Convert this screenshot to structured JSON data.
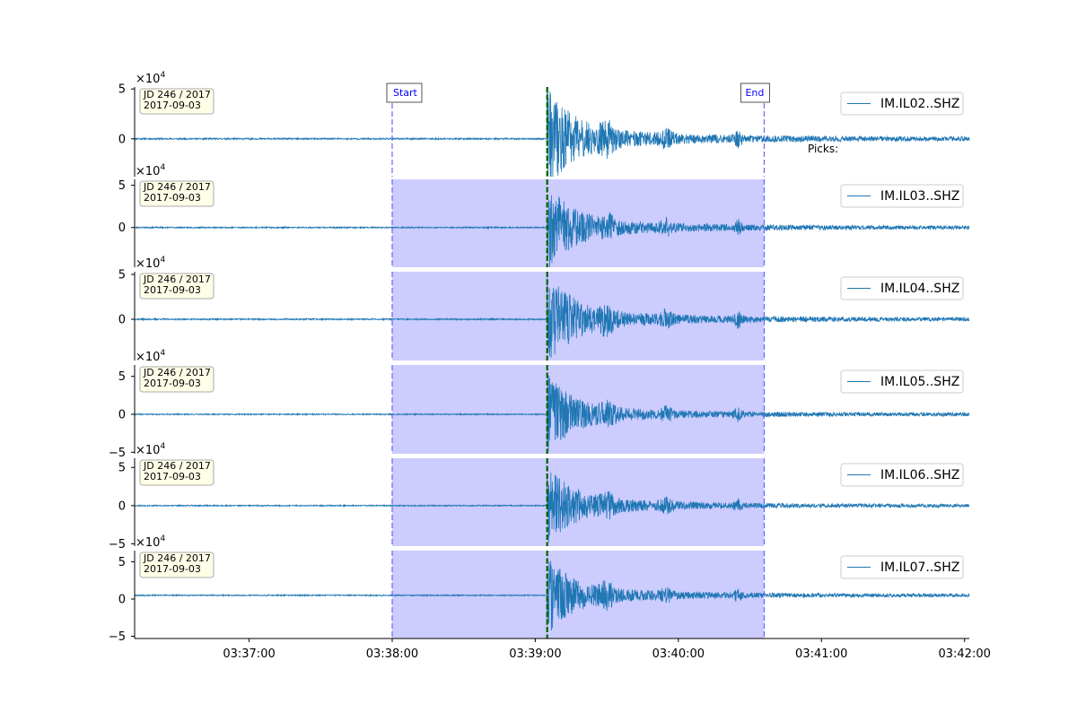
{
  "chart_data": {
    "type": "line",
    "panels": [
      {
        "station": "IM.IL02..SHZ",
        "yticks": [
          {
            "v": 5,
            "label": "5"
          },
          {
            "v": 0,
            "label": "0"
          }
        ],
        "ylim": [
          -3.8,
          5.2
        ],
        "baseline": 0.0,
        "amp": 1.0,
        "seed": 11,
        "shaded": false
      },
      {
        "station": "IM.IL03..SHZ",
        "yticks": [
          {
            "v": 5,
            "label": "5"
          },
          {
            "v": 0,
            "label": "0"
          }
        ],
        "ylim": [
          -4.7,
          5.7
        ],
        "baseline": 0.0,
        "amp": 1.0,
        "seed": 23,
        "shaded": true
      },
      {
        "station": "IM.IL04..SHZ",
        "yticks": [
          {
            "v": 5,
            "label": "5"
          },
          {
            "v": 0,
            "label": "0"
          }
        ],
        "ylim": [
          -4.6,
          5.3
        ],
        "baseline": 0.0,
        "amp": 1.0,
        "seed": 37,
        "shaded": true
      },
      {
        "station": "IM.IL05..SHZ",
        "yticks": [
          {
            "v": 5,
            "label": "5"
          },
          {
            "v": 0,
            "label": "0"
          },
          {
            "v": -5,
            "label": "−5"
          }
        ],
        "ylim": [
          -5.2,
          6.5
        ],
        "baseline": 0.0,
        "amp": 1.0,
        "seed": 41,
        "shaded": true
      },
      {
        "station": "IM.IL06..SHZ",
        "yticks": [
          {
            "v": 5,
            "label": "5"
          },
          {
            "v": 0,
            "label": "0"
          },
          {
            "v": -5,
            "label": "−5"
          }
        ],
        "ylim": [
          -5.3,
          6.2
        ],
        "baseline": 0.0,
        "amp": 1.0,
        "seed": 53,
        "shaded": true
      },
      {
        "station": "IM.IL07..SHZ",
        "yticks": [
          {
            "v": 5,
            "label": "5"
          },
          {
            "v": 0,
            "label": "0"
          },
          {
            "v": -5,
            "label": "−5"
          }
        ],
        "ylim": [
          -5.3,
          6.5
        ],
        "baseline": 0.5,
        "amp": 1.0,
        "seed": 67,
        "shaded": true
      }
    ],
    "scale_label": "×10",
    "scale_exponent": "4",
    "date_box": {
      "line1": "JD 246 / 2017",
      "line2": "2017-09-03"
    },
    "x_range": [
      "03:36:12",
      "03:42:02"
    ],
    "xticks": [
      "03:37:00",
      "03:38:00",
      "03:39:00",
      "03:40:00",
      "03:41:00",
      "03:42:00"
    ],
    "event_onset": "03:39:05",
    "window_start": "03:38:00",
    "window_end": "03:40:36",
    "start_label": "Start",
    "end_label": "End",
    "picks_label": "Picks:",
    "grid": false,
    "legend_placement": "upper right"
  },
  "colors": {
    "trace": "#1f77b4",
    "shade": "#ccccff",
    "window_line": "#6666ff",
    "onset": "#006400",
    "date_box_bg": "#ffffe8"
  }
}
